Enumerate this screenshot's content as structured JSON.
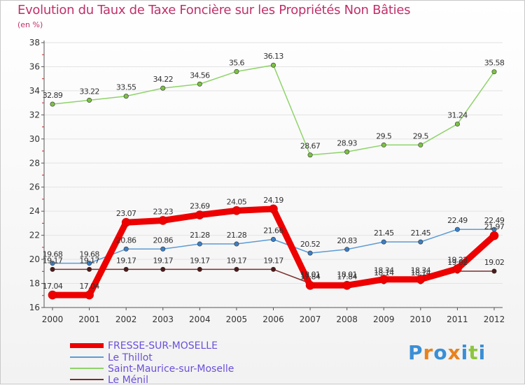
{
  "title": "Evolution du Taux de Taxe Foncière sur les Propriétés Non Bâties",
  "unit_label": "(en %)",
  "logo": {
    "letters": [
      "P",
      "r",
      "o",
      "x",
      "i",
      "t",
      "i"
    ],
    "colors": [
      "#3a8fd6",
      "#e8821e",
      "#3a8fd6",
      "#e8821e",
      "#3a8fd6",
      "#8cc63f",
      "#3a8fd6"
    ]
  },
  "chart_data": {
    "type": "line",
    "title": "Evolution du Taux de Taxe Foncière sur les Propriétés Non Bâties",
    "ylabel": "(en %)",
    "xlabel": "",
    "categories": [
      "2000",
      "2001",
      "2002",
      "2003",
      "2004",
      "2005",
      "2006",
      "2007",
      "2008",
      "2009",
      "2010",
      "2011",
      "2012"
    ],
    "ylim": [
      16,
      38
    ],
    "yticks": [
      16,
      18,
      20,
      22,
      24,
      26,
      28,
      30,
      32,
      34,
      36,
      38
    ],
    "grid": "horizontal",
    "series": [
      {
        "name": "FRESSE-SUR-MOSELLE",
        "color": "#ee0000",
        "width": 9,
        "values": [
          17.04,
          17.04,
          23.07,
          23.23,
          23.69,
          24.05,
          24.19,
          17.84,
          17.84,
          18.34,
          18.34,
          19.22,
          21.97
        ],
        "labels": [
          "17.04",
          "17.04",
          "23.07",
          "23.23",
          "23.69",
          "24.05",
          "24.19",
          "17.84",
          "17.84",
          "18.34",
          "18.34",
          "19.22",
          "21.97"
        ]
      },
      {
        "name": "Le Thillot",
        "color": "#5b9bd5",
        "width": 1.5,
        "values": [
          19.68,
          19.68,
          20.86,
          20.86,
          21.28,
          21.28,
          21.66,
          20.52,
          20.83,
          21.45,
          21.45,
          22.49,
          22.49
        ],
        "labels": [
          "19.68",
          "19.68",
          "20.86",
          "20.86",
          "21.28",
          "21.28",
          "21.66",
          "20.52",
          "20.83",
          "21.45",
          "21.45",
          "22.49",
          "22.49"
        ]
      },
      {
        "name": "Saint-Maurice-sur-Moselle",
        "color": "#8fd36a",
        "width": 1.5,
        "values": [
          32.89,
          33.22,
          33.55,
          34.22,
          34.56,
          35.6,
          36.13,
          28.67,
          28.93,
          29.5,
          29.5,
          31.24,
          35.58
        ],
        "labels": [
          "32.89",
          "33.22",
          "33.55",
          "34.22",
          "34.56",
          "35.6",
          "36.13",
          "28.67",
          "28.93",
          "29.5",
          "29.5",
          "31.24",
          "35.58"
        ]
      },
      {
        "name": "Le Ménil",
        "color": "#7a2e2e",
        "width": 1.5,
        "values": [
          19.17,
          19.17,
          19.17,
          19.17,
          19.17,
          19.17,
          19.17,
          18.01,
          18.01,
          18.14,
          18.14,
          19.02,
          19.02
        ],
        "labels": [
          "19.17",
          "19.17",
          "19.17",
          "19.17",
          "19.17",
          "19.17",
          "19.17",
          "18.01",
          "18.01",
          "18.14",
          "18.14",
          "19.02",
          "19.02"
        ]
      }
    ],
    "legend_position": "bottom-left"
  }
}
